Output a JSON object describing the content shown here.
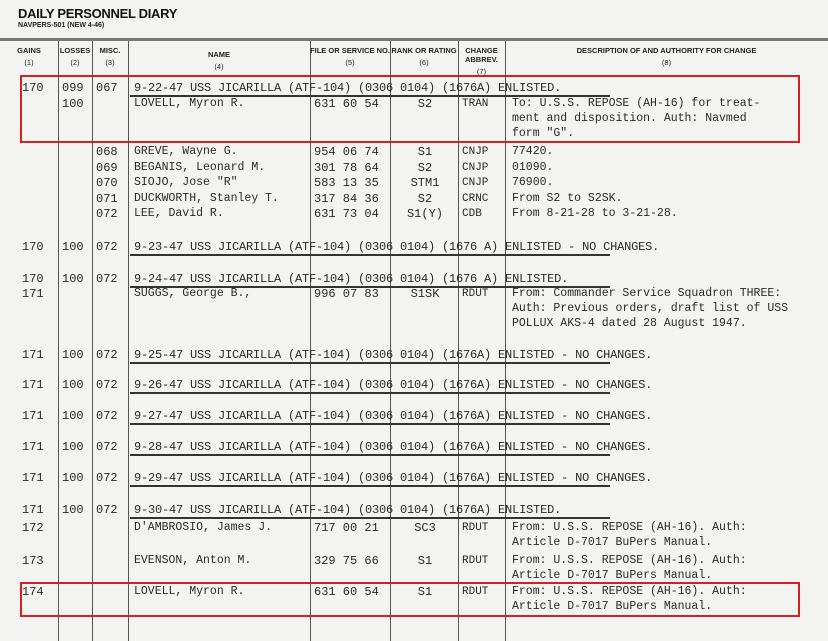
{
  "form": {
    "title": "DAILY PERSONNEL DIARY",
    "number": "NAVPERS-501 (NEW 4-46)"
  },
  "columns": [
    {
      "label": "GAINS",
      "num": "(1)"
    },
    {
      "label": "LOSSES",
      "num": "(2)"
    },
    {
      "label": "MISC.",
      "num": "(3)"
    },
    {
      "label": "NAME",
      "num": "(4)"
    },
    {
      "label": "FILE OR SERVICE NO.",
      "num": "(5)"
    },
    {
      "label": "RANK OR RATING",
      "num": "(6)"
    },
    {
      "label": "CHANGE ABBREV.",
      "num": "(7)"
    },
    {
      "label": "DESCRIPTION OF AND AUTHORITY FOR CHANGE",
      "num": "(8)"
    }
  ],
  "rows": [
    {
      "type": "summary",
      "gains": "170",
      "losses": "099",
      "misc": "067",
      "text": "9-22-47  USS JICARILLA (ATF-104) (0306 0104) (1676A) ENLISTED."
    },
    {
      "type": "entry",
      "losses": "100",
      "name": "LOVELL, Myron R.",
      "service_no": "631 60 54",
      "rate": "S2",
      "change": "TRAN",
      "desc": [
        "To: U.S.S. REPOSE (AH-16) for treat-",
        "ment and disposition. Auth: Navmed",
        "form \"G\"."
      ]
    },
    {
      "type": "entry",
      "misc": "068",
      "name": "GREVE, Wayne G.",
      "service_no": "954 06 74",
      "rate": "S1",
      "change": "CNJP",
      "desc": [
        "77420."
      ]
    },
    {
      "type": "entry",
      "misc": "069",
      "name": "BEGANIS, Leonard M.",
      "service_no": "301 78 64",
      "rate": "S2",
      "change": "CNJP",
      "desc": [
        "01090."
      ]
    },
    {
      "type": "entry",
      "misc": "070",
      "name": "SIOJO, Jose \"R\"",
      "service_no": "583 13 35",
      "rate": "STM1",
      "change": "CNJP",
      "desc": [
        "76900."
      ]
    },
    {
      "type": "entry",
      "misc": "071",
      "name": "DUCKWORTH, Stanley T.",
      "service_no": "317 84 36",
      "rate": "S2",
      "change": "CRNC",
      "desc": [
        "From S2 to S2SK."
      ]
    },
    {
      "type": "entry",
      "misc": "072",
      "name": "LEE, David R.",
      "service_no": "631 73 04",
      "rate": "S1(Y)",
      "change": "CDB",
      "desc": [
        "From 8-21-28 to 3-21-28."
      ]
    },
    {
      "type": "summary",
      "gains": "170",
      "losses": "100",
      "misc": "072",
      "text": "9-23-47  USS JICARILLA (ATF-104) (0306 0104) (1676 A) ENLISTED - NO CHANGES."
    },
    {
      "type": "summary",
      "gains": "170",
      "losses": "100",
      "misc": "072",
      "text": "9-24-47  USS JICARILLA (ATF-104) (0306 0104) (1676 A) ENLISTED."
    },
    {
      "type": "entry",
      "gains": "171",
      "name": "SUGGS, George B.,",
      "service_no": "996 07 83",
      "rate": "S1SK",
      "change": "RDUT",
      "desc": [
        "From: Commander Service Squadron THREE:",
        "Auth: Previous orders, draft list of USS",
        "POLLUX AKS-4 dated 28 August 1947."
      ]
    },
    {
      "type": "summary",
      "gains": "171",
      "losses": "100",
      "misc": "072",
      "text": "9-25-47  USS JICARILLA (ATF-104) (0306 0104) (1676A) ENLISTED - NO CHANGES."
    },
    {
      "type": "summary",
      "gains": "171",
      "losses": "100",
      "misc": "072",
      "text": "9-26-47  USS JICARILLA (ATF-104) (0306 0104) (1676A) ENLISTED - NO CHANGES."
    },
    {
      "type": "summary",
      "gains": "171",
      "losses": "100",
      "misc": "072",
      "text": "9-27-47  USS JICARILLA (ATF-104) (0306 0104) (1676A) ENLISTED - NO CHANGES."
    },
    {
      "type": "summary",
      "gains": "171",
      "losses": "100",
      "misc": "072",
      "text": "9-28-47  USS JICARILLA (ATF-104) (0306 0104) (1676A) ENLISTED - NO CHANGES."
    },
    {
      "type": "summary",
      "gains": "171",
      "losses": "100",
      "misc": "072",
      "text": "9-29-47  USS JICARILLA (ATF-104) (0306 0104) (1676A) ENLISTED - NO CHANGES."
    },
    {
      "type": "summary",
      "gains": "171",
      "losses": "100",
      "misc": "072",
      "text": "9-30-47  USS JICARILLA (ATF-104) (0306 0104) (1676A) ENLISTED."
    },
    {
      "type": "entry",
      "gains": "172",
      "name": "D'AMBROSIO, James J.",
      "service_no": "717 00 21",
      "rate": "SC3",
      "change": "RDUT",
      "desc": [
        "From: U.S.S. REPOSE (AH-16).  Auth:",
        "Article D-7017 BuPers Manual."
      ]
    },
    {
      "type": "entry",
      "gains": "173",
      "name": "EVENSON, Anton M.",
      "service_no": "329 75 66",
      "rate": "S1",
      "change": "RDUT",
      "desc": [
        "From: U.S.S. REPOSE (AH-16).  Auth:",
        "Article D-7017 BuPers Manual."
      ]
    },
    {
      "type": "entry",
      "gains": "174",
      "name": "LOVELL, Myron R.",
      "service_no": "631 60 54",
      "rate": "S1",
      "change": "RDUT",
      "desc": [
        "From: U.S.S. REPOSE (AH-16).  Auth:",
        "Article D-7017 BuPers Manual."
      ]
    }
  ],
  "highlight_color": "#d42020"
}
